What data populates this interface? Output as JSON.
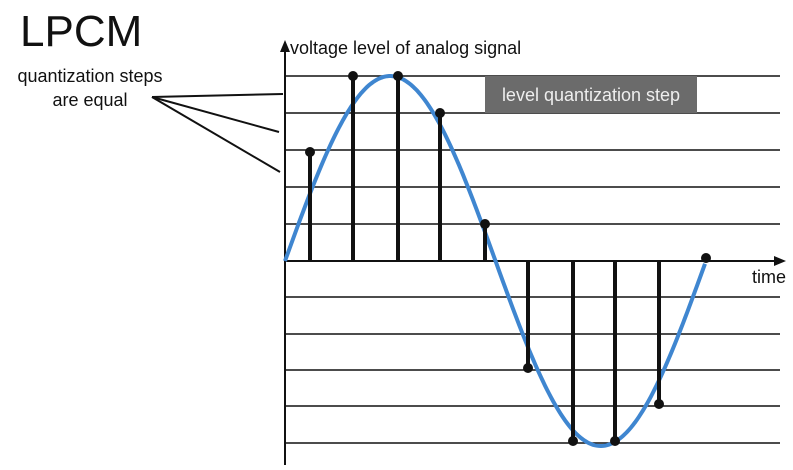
{
  "title": "LPCM",
  "annotation": {
    "lines": [
      "quantization steps",
      "are equal"
    ]
  },
  "y_axis_label": "voltage level of analog signal",
  "x_axis_label": "time",
  "box_label": "level quantization step"
}
